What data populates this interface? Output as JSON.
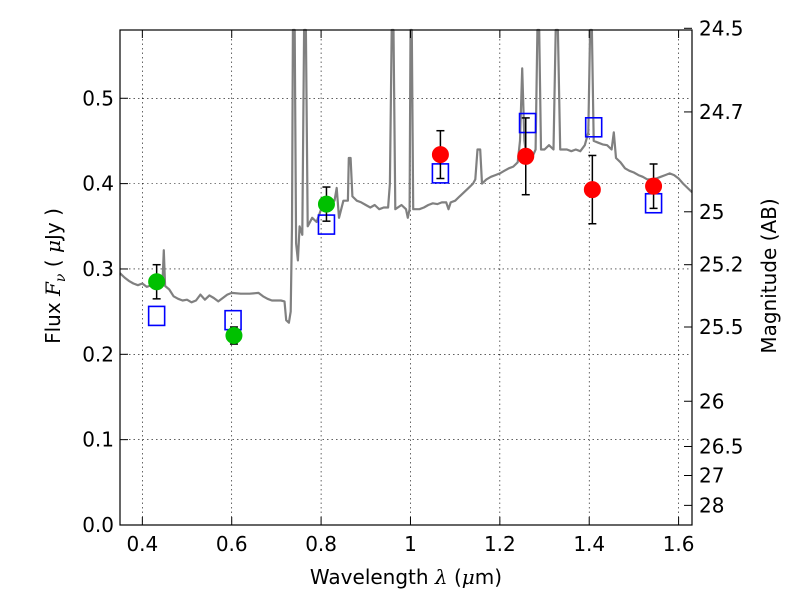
{
  "chart_data": {
    "type": "scatter",
    "xlabel": {
      "prefix": "Wavelength  ",
      "symbol": "λ",
      "suffix": " (",
      "unit_prefix": "μ",
      "unit": "m)"
    },
    "ylabel": {
      "prefix": "Flux  ",
      "symbol": "F",
      "subscript": "ν",
      "suffix": "  ( ",
      "unit_prefix": "μ",
      "unit": "Jy )"
    },
    "y2label": "Magnitude (AB)",
    "xlim": [
      0.35,
      1.63
    ],
    "ylim": [
      0.0,
      0.58
    ],
    "grid": true,
    "x_ticks": [
      0.4,
      0.6,
      0.8,
      1.0,
      1.2,
      1.4,
      1.6
    ],
    "x_tick_labels": [
      "0.4",
      "0.6",
      "0.8",
      "1",
      "1.2",
      "1.4",
      "1.6"
    ],
    "y_ticks": [
      0.0,
      0.1,
      0.2,
      0.3,
      0.4,
      0.5
    ],
    "y_tick_labels": [
      "0.0",
      "0.1",
      "0.2",
      "0.3",
      "0.4",
      "0.5"
    ],
    "y2_ticks": [
      {
        "label": "24.5",
        "flux": 0.582
      },
      {
        "label": "24.7",
        "flux": 0.484
      },
      {
        "label": "25",
        "flux": 0.367
      },
      {
        "label": "25.2",
        "flux": 0.305
      },
      {
        "label": "25.5",
        "flux": 0.232
      },
      {
        "label": "26",
        "flux": 0.145
      },
      {
        "label": "26.5",
        "flux": 0.092
      },
      {
        "label": "27",
        "flux": 0.058
      },
      {
        "label": "28",
        "flux": 0.023
      }
    ],
    "series": [
      {
        "type": "line",
        "color": "#808080",
        "points": [
          [
            0.35,
            0.295
          ],
          [
            0.36,
            0.29
          ],
          [
            0.37,
            0.286
          ],
          [
            0.38,
            0.283
          ],
          [
            0.39,
            0.281
          ],
          [
            0.4,
            0.283
          ],
          [
            0.41,
            0.279
          ],
          [
            0.42,
            0.281
          ],
          [
            0.43,
            0.284
          ],
          [
            0.44,
            0.28
          ],
          [
            0.445,
            0.284
          ],
          [
            0.448,
            0.322
          ],
          [
            0.451,
            0.28
          ],
          [
            0.46,
            0.276
          ],
          [
            0.47,
            0.268
          ],
          [
            0.48,
            0.265
          ],
          [
            0.49,
            0.263
          ],
          [
            0.5,
            0.264
          ],
          [
            0.51,
            0.261
          ],
          [
            0.52,
            0.263
          ],
          [
            0.53,
            0.27
          ],
          [
            0.54,
            0.264
          ],
          [
            0.55,
            0.269
          ],
          [
            0.56,
            0.266
          ],
          [
            0.57,
            0.262
          ],
          [
            0.58,
            0.266
          ],
          [
            0.59,
            0.27
          ],
          [
            0.6,
            0.272
          ],
          [
            0.62,
            0.271
          ],
          [
            0.64,
            0.271
          ],
          [
            0.66,
            0.272
          ],
          [
            0.67,
            0.268
          ],
          [
            0.68,
            0.265
          ],
          [
            0.69,
            0.263
          ],
          [
            0.7,
            0.263
          ],
          [
            0.71,
            0.263
          ],
          [
            0.718,
            0.262
          ],
          [
            0.722,
            0.24
          ],
          [
            0.728,
            0.237
          ],
          [
            0.732,
            0.25
          ],
          [
            0.735,
            0.35
          ],
          [
            0.737,
            0.58
          ],
          [
            0.741,
            0.58
          ],
          [
            0.744,
            0.33
          ],
          [
            0.748,
            0.31
          ],
          [
            0.752,
            0.35
          ],
          [
            0.758,
            0.34
          ],
          [
            0.762,
            0.58
          ],
          [
            0.766,
            0.58
          ],
          [
            0.77,
            0.35
          ],
          [
            0.78,
            0.36
          ],
          [
            0.79,
            0.355
          ],
          [
            0.8,
            0.37
          ],
          [
            0.81,
            0.372
          ],
          [
            0.82,
            0.378
          ],
          [
            0.83,
            0.38
          ],
          [
            0.835,
            0.395
          ],
          [
            0.84,
            0.36
          ],
          [
            0.85,
            0.38
          ],
          [
            0.86,
            0.38
          ],
          [
            0.862,
            0.43
          ],
          [
            0.866,
            0.43
          ],
          [
            0.87,
            0.385
          ],
          [
            0.88,
            0.38
          ],
          [
            0.89,
            0.378
          ],
          [
            0.9,
            0.375
          ],
          [
            0.91,
            0.372
          ],
          [
            0.92,
            0.375
          ],
          [
            0.93,
            0.37
          ],
          [
            0.94,
            0.372
          ],
          [
            0.95,
            0.372
          ],
          [
            0.954,
            0.4
          ],
          [
            0.958,
            0.58
          ],
          [
            0.962,
            0.58
          ],
          [
            0.966,
            0.37
          ],
          [
            0.98,
            0.375
          ],
          [
            0.99,
            0.37
          ],
          [
            0.994,
            0.36
          ],
          [
            0.998,
            0.37
          ],
          [
            1.0,
            0.58
          ],
          [
            1.003,
            0.58
          ],
          [
            1.006,
            0.37
          ],
          [
            1.02,
            0.37
          ],
          [
            1.03,
            0.372
          ],
          [
            1.04,
            0.375
          ],
          [
            1.05,
            0.377
          ],
          [
            1.06,
            0.376
          ],
          [
            1.07,
            0.378
          ],
          [
            1.08,
            0.378
          ],
          [
            1.085,
            0.37
          ],
          [
            1.09,
            0.378
          ],
          [
            1.1,
            0.38
          ],
          [
            1.11,
            0.385
          ],
          [
            1.12,
            0.39
          ],
          [
            1.13,
            0.395
          ],
          [
            1.14,
            0.4
          ],
          [
            1.145,
            0.405
          ],
          [
            1.15,
            0.44
          ],
          [
            1.156,
            0.44
          ],
          [
            1.16,
            0.4
          ],
          [
            1.17,
            0.405
          ],
          [
            1.18,
            0.408
          ],
          [
            1.19,
            0.41
          ],
          [
            1.2,
            0.412
          ],
          [
            1.21,
            0.415
          ],
          [
            1.22,
            0.418
          ],
          [
            1.23,
            0.42
          ],
          [
            1.24,
            0.425
          ],
          [
            1.245,
            0.45
          ],
          [
            1.25,
            0.535
          ],
          [
            1.255,
            0.45
          ],
          [
            1.26,
            0.43
          ],
          [
            1.27,
            0.428
          ],
          [
            1.28,
            0.44
          ],
          [
            1.284,
            0.58
          ],
          [
            1.288,
            0.58
          ],
          [
            1.292,
            0.44
          ],
          [
            1.3,
            0.44
          ],
          [
            1.31,
            0.445
          ],
          [
            1.32,
            0.44
          ],
          [
            1.325,
            0.58
          ],
          [
            1.33,
            0.58
          ],
          [
            1.335,
            0.44
          ],
          [
            1.35,
            0.44
          ],
          [
            1.36,
            0.438
          ],
          [
            1.37,
            0.44
          ],
          [
            1.38,
            0.438
          ],
          [
            1.39,
            0.445
          ],
          [
            1.398,
            0.46
          ],
          [
            1.402,
            0.58
          ],
          [
            1.406,
            0.58
          ],
          [
            1.41,
            0.45
          ],
          [
            1.42,
            0.448
          ],
          [
            1.43,
            0.446
          ],
          [
            1.44,
            0.445
          ],
          [
            1.45,
            0.44
          ],
          [
            1.455,
            0.46
          ],
          [
            1.46,
            0.43
          ],
          [
            1.47,
            0.425
          ],
          [
            1.48,
            0.418
          ],
          [
            1.49,
            0.415
          ],
          [
            1.5,
            0.413
          ],
          [
            1.51,
            0.41
          ],
          [
            1.52,
            0.408
          ],
          [
            1.53,
            0.405
          ],
          [
            1.54,
            0.405
          ],
          [
            1.55,
            0.406
          ],
          [
            1.56,
            0.408
          ],
          [
            1.57,
            0.41
          ],
          [
            1.58,
            0.412
          ],
          [
            1.59,
            0.41
          ],
          [
            1.6,
            0.406
          ],
          [
            1.61,
            0.4
          ],
          [
            1.62,
            0.395
          ],
          [
            1.63,
            0.39
          ]
        ]
      },
      {
        "type": "open-square",
        "color": "#0000ff",
        "points": [
          [
            0.432,
            0.245
          ],
          [
            0.603,
            0.24
          ],
          [
            0.812,
            0.352
          ],
          [
            1.067,
            0.412
          ],
          [
            1.262,
            0.471
          ],
          [
            1.41,
            0.466
          ],
          [
            1.544,
            0.377
          ]
        ]
      },
      {
        "type": "errorbar-circle",
        "color": "#00c000",
        "points": [
          {
            "x": 0.432,
            "y": 0.285,
            "lo": 0.265,
            "hi": 0.305
          },
          {
            "x": 0.605,
            "y": 0.222,
            "lo": 0.212,
            "hi": 0.232
          },
          {
            "x": 0.812,
            "y": 0.376,
            "lo": 0.356,
            "hi": 0.396
          }
        ]
      },
      {
        "type": "errorbar-circle",
        "color": "#ff0000",
        "points": [
          {
            "x": 1.067,
            "y": 0.434,
            "lo": 0.406,
            "hi": 0.462
          },
          {
            "x": 1.258,
            "y": 0.432,
            "lo": 0.387,
            "hi": 0.477
          },
          {
            "x": 1.407,
            "y": 0.393,
            "lo": 0.353,
            "hi": 0.433
          },
          {
            "x": 1.544,
            "y": 0.397,
            "lo": 0.371,
            "hi": 0.423
          }
        ]
      }
    ]
  }
}
